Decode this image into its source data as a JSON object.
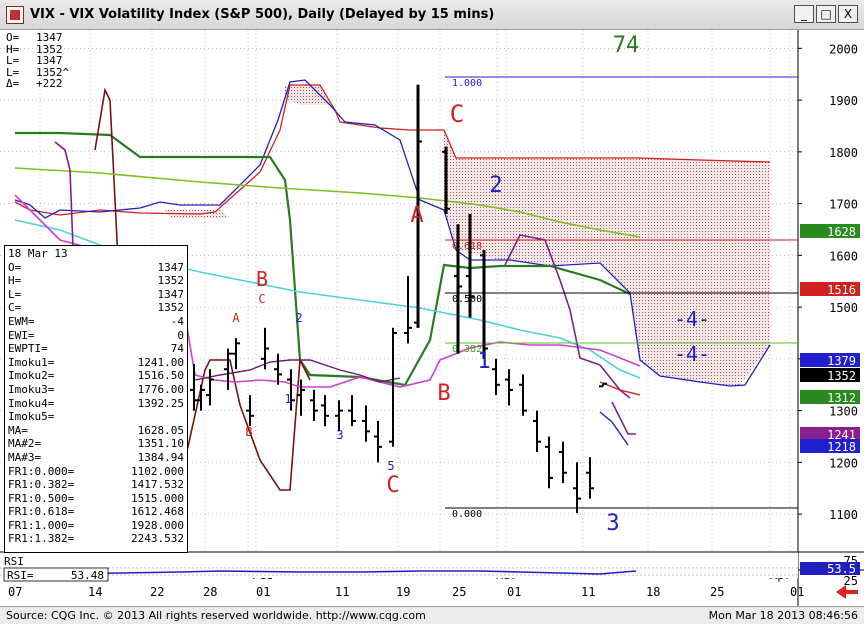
{
  "window": {
    "title": "VIX - VIX Volatility Index (S&P 500), Daily (Delayed by 15 mins)",
    "buttons": [
      "_",
      "□",
      "X"
    ]
  },
  "ohlc_header": [
    {
      "k": "O=",
      "v": "1347"
    },
    {
      "k": "H=",
      "v": "1352"
    },
    {
      "k": "L=",
      "v": "1347"
    },
    {
      "k": "L=",
      "v": "1352^"
    },
    {
      "k": "Δ=",
      "v": "+222"
    }
  ],
  "databox": {
    "date": "18 Mar 13",
    "rows": [
      {
        "k": "O=",
        "v": "1347"
      },
      {
        "k": "H=",
        "v": "1352"
      },
      {
        "k": "L=",
        "v": "1347"
      },
      {
        "k": "C=",
        "v": "1352"
      },
      {
        "k": "EWM=",
        "v": "-4"
      },
      {
        "k": "EWI=",
        "v": "0"
      },
      {
        "k": "EWPTI=",
        "v": "74"
      },
      {
        "k": "Imoku1=",
        "v": "1241.00"
      },
      {
        "k": "Imoku2=",
        "v": "1516.50"
      },
      {
        "k": "Imoku3=",
        "v": "1776.00"
      },
      {
        "k": "Imoku4=",
        "v": "1392.25"
      },
      {
        "k": "Imoku5=",
        "v": ""
      },
      {
        "k": "MA=",
        "v": "1628.05"
      },
      {
        "k": "MA#2=",
        "v": "1351.10"
      },
      {
        "k": "MA#3=",
        "v": "1384.94"
      },
      {
        "k": "FR1:0.000=",
        "v": "1102.000"
      },
      {
        "k": "FR1:0.382=",
        "v": "1417.532"
      },
      {
        "k": "FR1:0.500=",
        "v": "1515.000"
      },
      {
        "k": "FR1:0.618=",
        "v": "1612.468"
      },
      {
        "k": "FR1:1.000=",
        "v": "1928.000"
      },
      {
        "k": "FR1:1.382=",
        "v": "2243.532"
      }
    ]
  },
  "status": {
    "source": "Source: CQG Inc. © 2013 All rights reserved worldwide. http://www.cqg.com",
    "timestamp": "Mon Mar 18 2013 08:46:56"
  },
  "colors": {
    "bars": "#000000",
    "kijun": "#2a7a20",
    "tenkan": "#7a1010",
    "cloud_upper": "#d02020",
    "cloud_lower": "#2020c0",
    "ma_light": "#4fd0e0",
    "ma_magenta": "#d040d0",
    "ma_green": "#7ec020",
    "purple": "#7a2090"
  },
  "chart_data": {
    "type": "candlestick",
    "symbol": "VIX",
    "ylim": [
      1050,
      2020
    ],
    "y_ticks": [
      2000,
      1900,
      1800,
      1700,
      1600,
      1500,
      1400,
      1300,
      1200,
      1100
    ],
    "x_labels": [
      "07",
      "14",
      "22",
      "28",
      "Feb",
      "01",
      "11",
      "19",
      "25",
      "Mar",
      "01",
      "11",
      "18",
      "25",
      "Apr",
      "01"
    ],
    "ewpti": "74",
    "bars": [
      {
        "o": 1340,
        "h": 1390,
        "l": 1300,
        "c": 1320
      },
      {
        "o": 1320,
        "h": 1350,
        "l": 1300,
        "c": 1340
      },
      {
        "o": 1330,
        "h": 1380,
        "l": 1310,
        "c": 1360
      },
      {
        "o": 1380,
        "h": 1420,
        "l": 1340,
        "c": 1410
      },
      {
        "o": 1410,
        "h": 1440,
        "l": 1380,
        "c": 1430
      },
      {
        "o": 1300,
        "h": 1330,
        "l": 1270,
        "c": 1290
      },
      {
        "o": 1400,
        "h": 1460,
        "l": 1380,
        "c": 1420
      },
      {
        "o": 1380,
        "h": 1410,
        "l": 1350,
        "c": 1370
      },
      {
        "o": 1360,
        "h": 1380,
        "l": 1300,
        "c": 1320
      },
      {
        "o": 1330,
        "h": 1360,
        "l": 1290,
        "c": 1340
      },
      {
        "o": 1320,
        "h": 1340,
        "l": 1280,
        "c": 1300
      },
      {
        "o": 1310,
        "h": 1330,
        "l": 1270,
        "c": 1290
      },
      {
        "o": 1290,
        "h": 1320,
        "l": 1260,
        "c": 1300
      },
      {
        "o": 1300,
        "h": 1330,
        "l": 1270,
        "c": 1280
      },
      {
        "o": 1280,
        "h": 1310,
        "l": 1240,
        "c": 1260
      },
      {
        "o": 1250,
        "h": 1280,
        "l": 1200,
        "c": 1230
      },
      {
        "o": 1240,
        "h": 1460,
        "l": 1230,
        "c": 1450
      },
      {
        "o": 1450,
        "h": 1560,
        "l": 1430,
        "c": 1460
      },
      {
        "o": 1470,
        "h": 1930,
        "l": 1460,
        "c": 1820
      },
      {
        "o": 1800,
        "h": 1810,
        "l": 1680,
        "c": 1690
      },
      {
        "o": 1560,
        "h": 1660,
        "l": 1410,
        "c": 1540
      },
      {
        "o": 1560,
        "h": 1680,
        "l": 1480,
        "c": 1520
      },
      {
        "o": 1600,
        "h": 1610,
        "l": 1400,
        "c": 1420
      },
      {
        "o": 1380,
        "h": 1400,
        "l": 1330,
        "c": 1350
      },
      {
        "o": 1360,
        "h": 1380,
        "l": 1310,
        "c": 1340
      },
      {
        "o": 1350,
        "h": 1370,
        "l": 1290,
        "c": 1300
      },
      {
        "o": 1280,
        "h": 1300,
        "l": 1220,
        "c": 1240
      },
      {
        "o": 1230,
        "h": 1250,
        "l": 1150,
        "c": 1170
      },
      {
        "o": 1220,
        "h": 1240,
        "l": 1160,
        "c": 1180
      },
      {
        "o": 1150,
        "h": 1200,
        "l": 1102,
        "c": 1130
      },
      {
        "o": 1180,
        "h": 1210,
        "l": 1130,
        "c": 1150
      },
      {
        "o": 1347,
        "h": 1352,
        "l": 1347,
        "c": 1352
      }
    ],
    "right_axis_labels": [
      {
        "value": 1628,
        "text": "1628",
        "bg": "#2a8a20",
        "fg": "#ffffff"
      },
      {
        "value": 1516,
        "text": "1516",
        "bg": "#d02020",
        "fg": "#ffffff"
      },
      {
        "value": 1379,
        "text": "1379",
        "bg": "#2020d0",
        "fg": "#ffffff"
      },
      {
        "value": 1352,
        "text": "1352",
        "bg": "#000000",
        "fg": "#ffffff"
      },
      {
        "value": 1312,
        "text": "1312",
        "bg": "#2a8a20",
        "fg": "#ffffff"
      },
      {
        "value": 1241,
        "text": "1241",
        "bg": "#8a2090",
        "fg": "#ffffff"
      },
      {
        "value": 1218,
        "text": "1218",
        "bg": "#2020d0",
        "fg": "#ffffff"
      }
    ],
    "fib_levels": [
      {
        "ratio": "1.000",
        "value": 1928
      },
      {
        "ratio": "0.618",
        "value": 1612.468
      },
      {
        "ratio": "0.500",
        "value": 1515
      },
      {
        "ratio": "0.382",
        "value": 1417.532
      },
      {
        "ratio": "0.000",
        "value": 1102
      }
    ],
    "wave_labels": [
      {
        "text": "A",
        "color": "#d02020"
      },
      {
        "text": "B",
        "color": "#d02020"
      },
      {
        "text": "C",
        "color": "#d02020"
      },
      {
        "text": "A",
        "color": "#d02020"
      },
      {
        "text": "B",
        "color": "#d02020"
      },
      {
        "text": "C",
        "color": "#d02020"
      },
      {
        "text": "C",
        "color": "#d02020"
      },
      {
        "text": "B",
        "color": "#d02020"
      },
      {
        "text": "A",
        "color": "#d02020"
      },
      {
        "text": "1",
        "color": "#2020c0"
      },
      {
        "text": "2",
        "color": "#2020c0"
      },
      {
        "text": "3",
        "color": "#2020c0"
      },
      {
        "text": "5",
        "color": "#2020c0"
      },
      {
        "text": "1",
        "color": "#2020c0"
      },
      {
        "text": "2",
        "color": "#2020c0"
      },
      {
        "text": "3",
        "color": "#2020c0"
      },
      {
        "text": "-4-",
        "color": "#2020c0"
      },
      {
        "text": "-4-",
        "color": "#2020c0"
      },
      {
        "text": "74",
        "color": "#2a7a20"
      }
    ],
    "rsi": {
      "label": "RSI",
      "label2": "RSI=",
      "value": "53.48",
      "right_value": "53.5",
      "right_ticks": [
        "75",
        "25"
      ]
    }
  }
}
